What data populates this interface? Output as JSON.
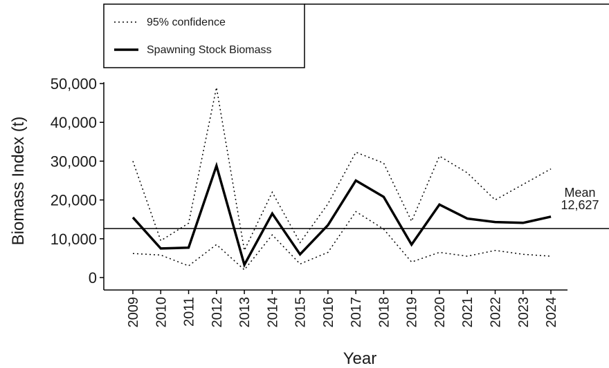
{
  "chart_data": {
    "type": "line",
    "y_label": "Biomass Index (t)",
    "x_label": "Year",
    "categories": [
      "2009",
      "2010",
      "2011",
      "2012",
      "2013",
      "2014",
      "2015",
      "2016",
      "2017",
      "2018",
      "2019",
      "2020",
      "2021",
      "2022",
      "2023",
      "2024"
    ],
    "series": [
      {
        "name": "Spawning Stock Biomass",
        "color": "#000000",
        "values": [
          15500,
          7500,
          7700,
          28800,
          3300,
          16500,
          6000,
          13500,
          25000,
          20800,
          8500,
          18800,
          15200,
          14300,
          14100,
          15700
        ]
      }
    ],
    "confidence": {
      "name": "95% confidence",
      "color": "#000000",
      "upper": [
        30000,
        9500,
        14000,
        49000,
        7000,
        22000,
        9000,
        19000,
        32300,
        29500,
        14500,
        31300,
        27000,
        20000,
        24000,
        28000
      ],
      "lower": [
        6200,
        5800,
        3000,
        8500,
        2000,
        11000,
        3500,
        6500,
        17000,
        12500,
        4000,
        6500,
        5500,
        7000,
        6000,
        5500
      ]
    },
    "mean": {
      "value": 12627,
      "label": "12,627"
    },
    "mean_annotation": "Mean",
    "ylim": [
      -3200,
      50000
    ],
    "yticks": [
      0,
      {
        "value": 10000,
        "label": "10,000"
      },
      {
        "value": 20000,
        "label": "20,000"
      },
      {
        "value": 30000,
        "label": "30,000"
      },
      {
        "value": 40000,
        "label": "40,000"
      },
      {
        "value": 50000,
        "label": "50,000"
      }
    ]
  }
}
